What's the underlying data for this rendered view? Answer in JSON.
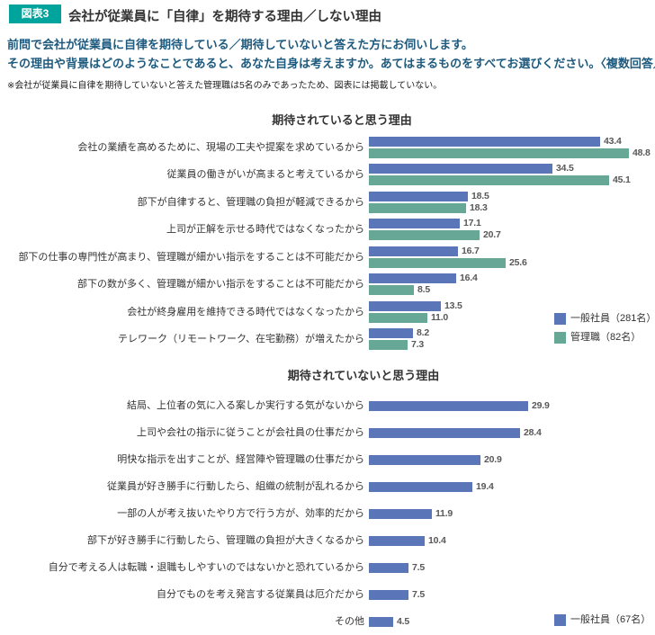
{
  "header": {
    "badge": "図表3",
    "title": "会社が従業員に「自律」を期待する理由／しない理由",
    "lead_line1": "前問で会社が従業員に自律を期待している／期待していないと答えた方にお伺いします。",
    "lead_line2": "その理由や背景はどのようなことであると、あなた自身は考えますか。あてはまるものをすべてお選びください。〈複数回答／%〉",
    "note": "※会社が従業員に自律を期待していないと答えた管理職は5名のみであったため、図表には掲載していない。"
  },
  "colors": {
    "accent_teal": "#00a49c",
    "lead_text": "#1d5a7e",
    "bar_blue": "#5b76b8",
    "bar_green": "#66a795",
    "value_label": "#595757"
  },
  "chart_data": [
    {
      "type": "bar",
      "orientation": "horizontal",
      "title": "期待されていると思う理由",
      "unit": "%",
      "xlim": [
        0,
        50
      ],
      "grid": false,
      "legend_position": "right",
      "categories": [
        "会社の業績を高めるために、現場の工夫や提案を求めているから",
        "従業員の働きがいが高まると考えているから",
        "部下が自律すると、管理職の負担が軽減できるから",
        "上司が正解を示せる時代ではなくなったから",
        "部下の仕事の専門性が高まり、管理職が細かい指示をすることは不可能だから",
        "部下の数が多く、管理職が細かい指示をすることは不可能だから",
        "会社が終身雇用を維持できる時代ではなくなったから",
        "テレワーク（リモートワーク、在宅勤務）が増えたから"
      ],
      "series": [
        {
          "name": "一般社員（281名）",
          "color": "#5b76b8",
          "values": [
            43.4,
            34.5,
            18.5,
            17.1,
            16.7,
            16.4,
            13.5,
            8.2
          ]
        },
        {
          "name": "管理職（82名）",
          "color": "#66a795",
          "values": [
            48.8,
            45.1,
            18.3,
            20.7,
            25.6,
            8.5,
            11.0,
            7.3
          ]
        }
      ]
    },
    {
      "type": "bar",
      "orientation": "horizontal",
      "title": "期待されていないと思う理由",
      "unit": "%",
      "xlim": [
        0,
        50
      ],
      "grid": false,
      "legend_position": "right",
      "categories": [
        "結局、上位者の気に入る案しか実行する気がないから",
        "上司や会社の指示に従うことが会社員の仕事だから",
        "明快な指示を出すことが、経営陣や管理職の仕事だから",
        "従業員が好き勝手に行動したら、組織の統制が乱れるから",
        "一部の人が考え抜いたやり方で行う方が、効率的だから",
        "部下が好き勝手に行動したら、管理職の負担が大きくなるから",
        "自分で考える人は転職・退職もしやすいのではないかと恐れているから",
        "自分でものを考え発言する従業員は厄介だから",
        "その他"
      ],
      "series": [
        {
          "name": "一般社員（67名）",
          "color": "#5b76b8",
          "values": [
            29.9,
            28.4,
            20.9,
            19.4,
            11.9,
            10.4,
            7.5,
            7.5,
            4.5
          ]
        }
      ]
    }
  ]
}
